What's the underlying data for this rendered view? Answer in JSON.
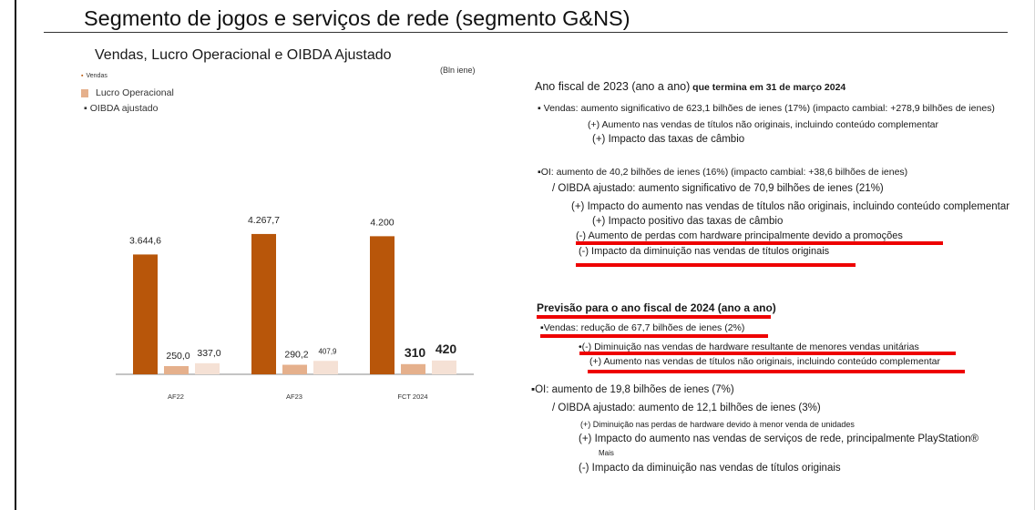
{
  "title": "Segmento de jogos e serviços de rede (segmento G&NS)",
  "subtitle": "Vendas, Lucro Operacional e OIBDA Ajustado",
  "units": "(Bln iene)",
  "legend": [
    {
      "label": "Vendas",
      "marker": "▪",
      "color": "#b8560a"
    },
    {
      "label": "Lucro Operacional",
      "marker": "",
      "color": "#e5b08c"
    },
    {
      "label": "OIBDA ajustado",
      "marker": "▪",
      "color": "#f5e1d5"
    }
  ],
  "chart_data": {
    "type": "bar",
    "categories": [
      "AF22",
      "AF23",
      "FCT 2024"
    ],
    "series": [
      {
        "name": "Vendas",
        "values": [
          3644.6,
          4267.7,
          4200
        ],
        "labels": [
          "3.644,6",
          "4.267,7",
          "4.200"
        ],
        "color": "#b8560a"
      },
      {
        "name": "Lucro Operacional",
        "values": [
          250.0,
          290.2,
          310
        ],
        "labels": [
          "250,0",
          "290,2",
          "310"
        ],
        "color": "#e5b08c"
      },
      {
        "name": "OIBDA ajustado",
        "values": [
          337.0,
          407.9,
          420
        ],
        "labels": [
          "337,0",
          "407,9",
          "420"
        ],
        "color": "#f5e1d5"
      }
    ],
    "ylabel": "(Bln iene)",
    "grid": false,
    "legend": "top-left"
  },
  "text": {
    "fy23_head": "Ano fiscal de 2023 (ano a ano)",
    "fy23_head_bold": " que termina em 31 de março 2024",
    "sales_line": "▪ Vendas: aumento significativo de 623,1 bilhões de ienes (17%) (impacto cambial: +278,9 bilhões de ienes)",
    "sales_sub1": "(+) Aumento nas vendas de títulos não originais, incluindo conteúdo complementar",
    "sales_sub2": "(+) Impacto das taxas de câmbio",
    "oi_line": "▪OI: aumento de 40,2 bilhões de ienes (16%) (impacto cambial: +38,6 bilhões de ienes)",
    "oibda_line": "/ OIBDA ajustado: aumento significativo de 70,9 bilhões de ienes (21%)",
    "oi_sub1": "(+) Impacto do aumento nas vendas de títulos não originais, incluindo conteúdo complementar",
    "oi_sub2": "(+) Impacto positivo das taxas de câmbio",
    "oi_sub3": "(-) Aumento de perdas com hardware principalmente devido a promoções",
    "oi_sub4": "(-) Impacto da diminuição nas vendas de títulos originais",
    "fy24_head": "Previsão para o ano fiscal de 2024 (ano a ano)",
    "fy24_sales": "▪Vendas: redução de 67,7 bilhões de ienes (2%)",
    "fy24_sales_sub1": "•(-) Diminuição nas vendas de hardware resultante de menores vendas unitárias",
    "fy24_sales_sub2": "(+) Aumento nas vendas de títulos não originais, incluindo conteúdo complementar",
    "fy24_oi": "▪OI: aumento de 19,8 bilhões de ienes (7%)",
    "fy24_oibda": "/ OIBDA ajustado: aumento de 12,1 bilhões de ienes (3%)",
    "fy24_oi_sub1": "(+) Diminuição nas perdas de hardware devido à menor venda de unidades",
    "fy24_oi_sub2": "(+) Impacto do aumento nas vendas de serviços de rede, principalmente PlayStation®",
    "fy24_oi_sub2b": "Mais",
    "fy24_oi_sub3": "(-) Impacto da diminuição nas vendas de títulos originais"
  }
}
